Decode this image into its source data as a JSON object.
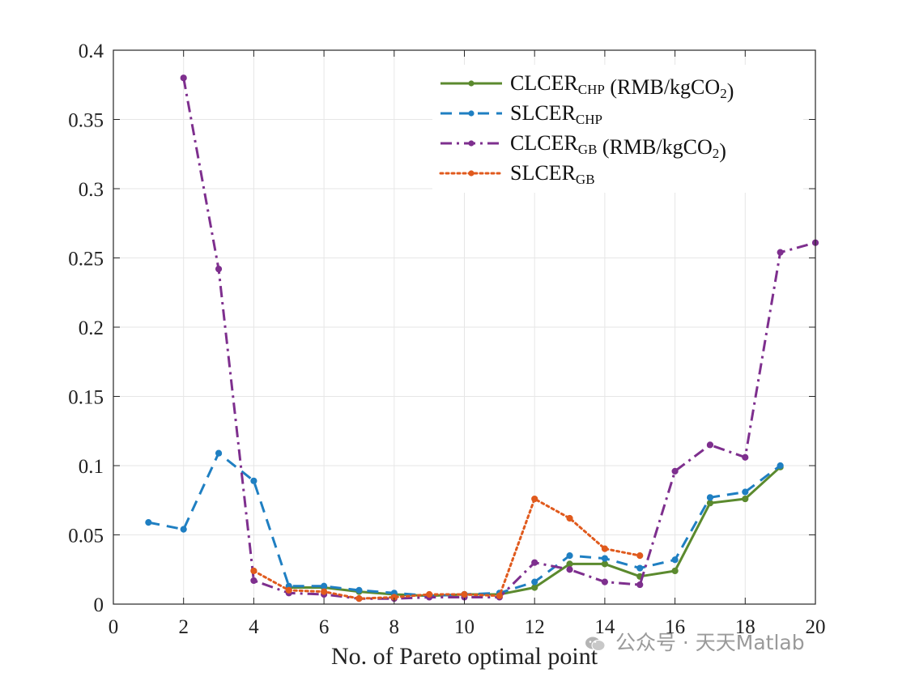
{
  "chart_data": {
    "type": "line",
    "xlabel": "No. of Pareto optimal point",
    "ylabel": "",
    "xlim": [
      0,
      20
    ],
    "ylim": [
      0,
      0.4
    ],
    "xticks": [
      "0",
      "2",
      "4",
      "6",
      "8",
      "10",
      "12",
      "14",
      "16",
      "18",
      "20"
    ],
    "yticks": [
      "0",
      "0.05",
      "0.1",
      "0.15",
      "0.2",
      "0.25",
      "0.3",
      "0.35",
      "0.4"
    ],
    "grid": true,
    "legend_position": "top-right",
    "series": [
      {
        "name": "CLCER_CHP (RMB/kgCO2)",
        "label_main": "CLCER",
        "label_sub": "CHP",
        "label_suffix": " (RMB/kgCO",
        "label_sub2": "2",
        "label_end": ")",
        "color": "#5b8a2e",
        "style": "solid",
        "x": [
          5,
          6,
          7,
          8,
          9,
          10,
          11,
          12,
          13,
          14,
          15,
          16,
          17,
          18,
          19
        ],
        "y": [
          0.012,
          0.012,
          0.009,
          0.007,
          0.006,
          0.007,
          0.007,
          0.012,
          0.029,
          0.029,
          0.02,
          0.024,
          0.073,
          0.076,
          0.099
        ]
      },
      {
        "name": "SLCER_CHP",
        "label_main": "SLCER",
        "label_sub": "CHP",
        "label_suffix": "",
        "label_sub2": "",
        "label_end": "",
        "color": "#1f7fc2",
        "style": "dashed",
        "x": [
          1,
          2,
          3,
          4,
          5,
          6,
          7,
          8,
          9,
          10,
          11,
          12,
          13,
          14,
          15,
          16,
          17,
          18,
          19
        ],
        "y": [
          0.059,
          0.054,
          0.109,
          0.089,
          0.013,
          0.013,
          0.01,
          0.008,
          0.006,
          0.007,
          0.008,
          0.016,
          0.035,
          0.033,
          0.026,
          0.032,
          0.077,
          0.081,
          0.1
        ]
      },
      {
        "name": "CLCER_GB (RMB/kgCO2)",
        "label_main": "CLCER",
        "label_sub": "GB",
        "label_suffix": " (RMB/kgCO",
        "label_sub2": "2",
        "label_end": ")",
        "color": "#7e2f8e",
        "style": "dashdot",
        "x": [
          2,
          3,
          4,
          5,
          6,
          7,
          8,
          9,
          10,
          11,
          12,
          13,
          14,
          15,
          16,
          17,
          18,
          19,
          20
        ],
        "y": [
          0.38,
          0.242,
          0.017,
          0.008,
          0.007,
          0.004,
          0.004,
          0.005,
          0.005,
          0.005,
          0.03,
          0.025,
          0.016,
          0.014,
          0.096,
          0.115,
          0.106,
          0.254,
          0.261
        ]
      },
      {
        "name": "SLCER_GB",
        "label_main": "SLCER",
        "label_sub": "GB",
        "label_suffix": "",
        "label_sub2": "",
        "label_end": "",
        "color": "#e05a1d",
        "style": "dotted",
        "x": [
          4,
          5,
          6,
          7,
          8,
          9,
          10,
          11,
          12,
          13,
          14,
          15
        ],
        "y": [
          0.024,
          0.01,
          0.009,
          0.004,
          0.005,
          0.007,
          0.007,
          0.006,
          0.076,
          0.062,
          0.04,
          0.035
        ]
      }
    ]
  },
  "watermark": {
    "text": "公众号 · 天天Matlab",
    "icon": "wechat-icon"
  }
}
